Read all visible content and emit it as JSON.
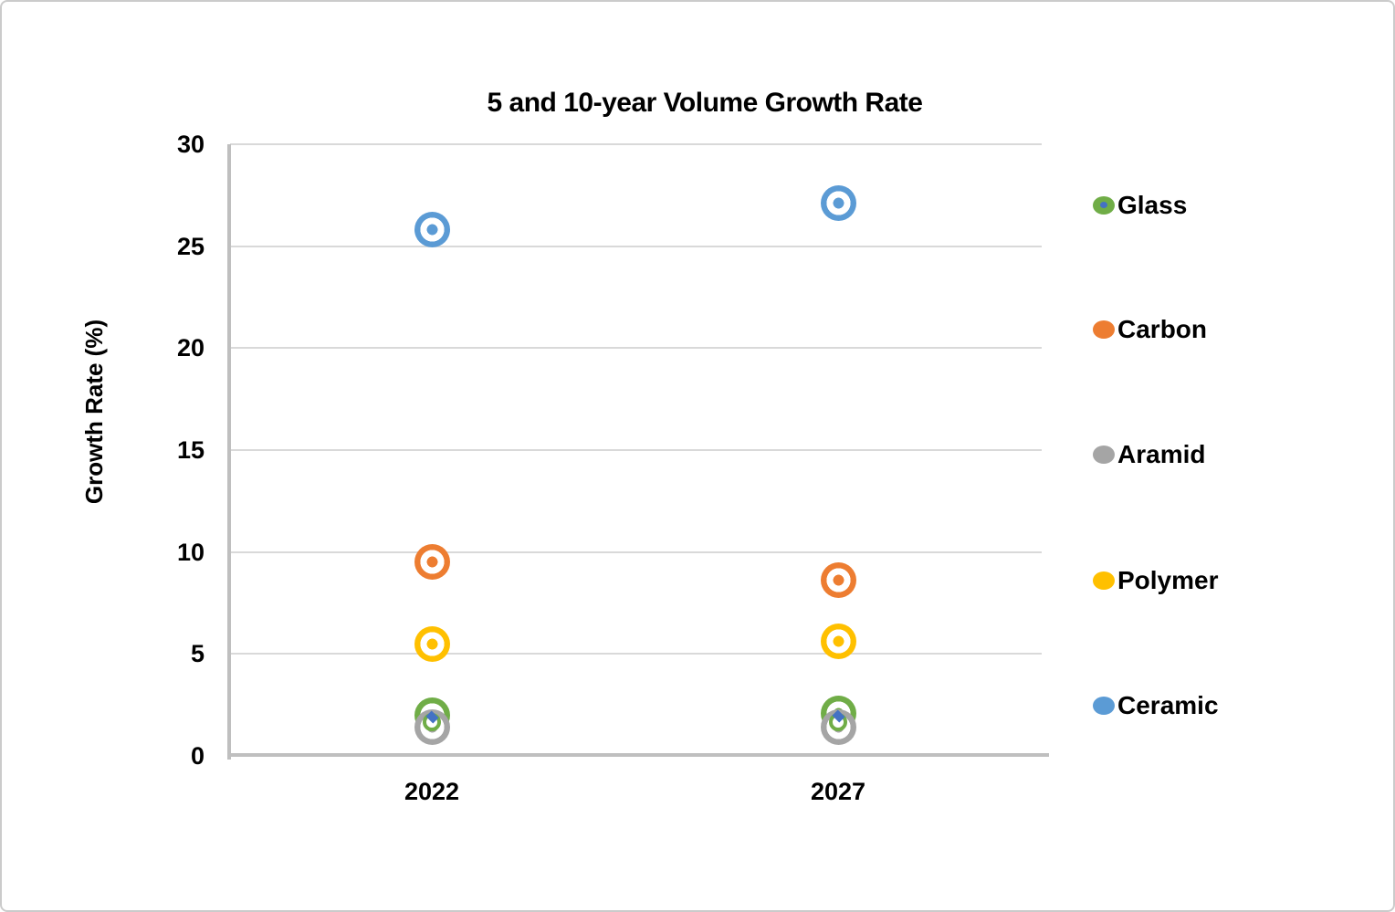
{
  "title": "5 and 10-year Volume Growth Rate",
  "y_axis_title": "Growth Rate (%)",
  "colors": {
    "grid": "#D9D9D9",
    "axis": "#BFBFBF",
    "text": "#000000",
    "frame_border": "#cbcbcb",
    "hidden_marker_blue": "#4472C4"
  },
  "chart_data": {
    "type": "scatter",
    "title": "5 and 10-year Volume Growth Rate",
    "xlabel": "",
    "ylabel": "Growth Rate (%)",
    "ylim": [
      0,
      30
    ],
    "y_ticks": [
      0,
      5,
      10,
      15,
      20,
      25,
      30
    ],
    "categories": [
      "2022",
      "2027"
    ],
    "grid": "horizontal",
    "legend_position": "right",
    "marker_style": "filled circle with white inner ring (bullseye)",
    "series": [
      {
        "name": "Glass",
        "color": "#70AD47",
        "values": [
          2.0,
          2.1
        ],
        "z": 1
      },
      {
        "name": "Aramid",
        "color": "#A5A5A5",
        "values": [
          1.4,
          1.4
        ],
        "z": 2
      },
      {
        "name": "Carbon",
        "color": "#ED7D31",
        "values": [
          9.5,
          8.6
        ],
        "z": 4
      },
      {
        "name": "Polymer",
        "color": "#FFC000",
        "values": [
          5.5,
          5.6
        ],
        "z": 5
      },
      {
        "name": "Ceramic",
        "color": "#5B9BD5",
        "values": [
          25.8,
          27.1
        ],
        "z": 6
      }
    ],
    "hidden_overlay_markers": [
      {
        "shape": "ring",
        "color": "#70AD47",
        "values": [
          1.65,
          1.65
        ],
        "z": 3
      },
      {
        "shape": "diamond",
        "color": "#4472C4",
        "values": [
          1.9,
          1.95
        ],
        "z": 3
      }
    ]
  },
  "legend": {
    "items": [
      {
        "label": "Glass",
        "color": "#70AD47",
        "overlay_dot": true
      },
      {
        "label": "Carbon",
        "color": "#ED7D31",
        "overlay_dot": false
      },
      {
        "label": "Aramid",
        "color": "#A5A5A5",
        "overlay_dot": false
      },
      {
        "label": "Polymer",
        "color": "#FFC000",
        "overlay_dot": false
      },
      {
        "label": "Ceramic",
        "color": "#5B9BD5",
        "overlay_dot": false
      }
    ]
  }
}
